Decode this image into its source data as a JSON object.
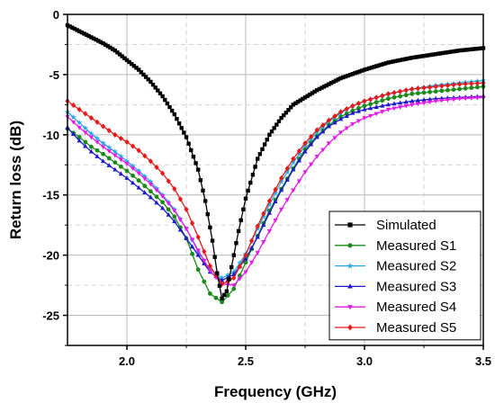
{
  "chart_data": {
    "type": "line",
    "title": "",
    "xlabel": "Frequency (GHz)",
    "ylabel": "Return loss (dB)",
    "xlim": [
      1.75,
      3.5
    ],
    "ylim": [
      -27.5,
      0
    ],
    "xticks": [
      2.0,
      2.5,
      3.0,
      3.5
    ],
    "xtick_labels": [
      "2.0",
      "2.5",
      "3.0",
      "3.5"
    ],
    "yticks": [
      0,
      -5,
      -10,
      -15,
      -20,
      -25
    ],
    "ytick_labels": [
      "0",
      "-5",
      "-10",
      "-15",
      "-20",
      "-25"
    ],
    "grid": true,
    "legend_position": "bottom-right",
    "series": [
      {
        "name": "Simulated",
        "color": "#000000",
        "marker": "square",
        "points": [
          [
            1.75,
            -0.9
          ],
          [
            1.8,
            -1.4
          ],
          [
            1.85,
            -1.9
          ],
          [
            1.9,
            -2.4
          ],
          [
            1.95,
            -3.0
          ],
          [
            2.0,
            -3.8
          ],
          [
            2.05,
            -4.6
          ],
          [
            2.1,
            -5.6
          ],
          [
            2.15,
            -6.8
          ],
          [
            2.2,
            -8.3
          ],
          [
            2.25,
            -10.2
          ],
          [
            2.3,
            -12.9
          ],
          [
            2.33,
            -15.5
          ],
          [
            2.36,
            -18.8
          ],
          [
            2.38,
            -21.5
          ],
          [
            2.4,
            -23.6
          ],
          [
            2.42,
            -23.0
          ],
          [
            2.44,
            -21.0
          ],
          [
            2.47,
            -18.0
          ],
          [
            2.5,
            -15.3
          ],
          [
            2.55,
            -12.0
          ],
          [
            2.6,
            -10.0
          ],
          [
            2.65,
            -8.6
          ],
          [
            2.7,
            -7.5
          ],
          [
            2.8,
            -6.3
          ],
          [
            2.9,
            -5.3
          ],
          [
            3.0,
            -4.6
          ],
          [
            3.1,
            -4.0
          ],
          [
            3.2,
            -3.6
          ],
          [
            3.3,
            -3.3
          ],
          [
            3.4,
            -3.0
          ],
          [
            3.5,
            -2.8
          ]
        ]
      },
      {
        "name": "Measured S1",
        "color": "#1a8a1a",
        "marker": "circle",
        "points": [
          [
            1.75,
            -9.5
          ],
          [
            1.8,
            -10.2
          ],
          [
            1.85,
            -11.0
          ],
          [
            1.9,
            -11.6
          ],
          [
            1.95,
            -12.3
          ],
          [
            2.0,
            -13.0
          ],
          [
            2.05,
            -13.8
          ],
          [
            2.1,
            -14.7
          ],
          [
            2.15,
            -15.6
          ],
          [
            2.2,
            -16.8
          ],
          [
            2.25,
            -18.6
          ],
          [
            2.3,
            -21.2
          ],
          [
            2.35,
            -23.2
          ],
          [
            2.4,
            -23.9
          ],
          [
            2.45,
            -22.8
          ],
          [
            2.5,
            -20.6
          ],
          [
            2.55,
            -18.4
          ],
          [
            2.6,
            -16.3
          ],
          [
            2.65,
            -14.5
          ],
          [
            2.7,
            -12.8
          ],
          [
            2.75,
            -11.2
          ],
          [
            2.8,
            -10.1
          ],
          [
            2.85,
            -9.2
          ],
          [
            2.9,
            -8.5
          ],
          [
            2.95,
            -8.0
          ],
          [
            3.0,
            -7.6
          ],
          [
            3.1,
            -7.0
          ],
          [
            3.2,
            -6.6
          ],
          [
            3.3,
            -6.4
          ],
          [
            3.4,
            -6.2
          ],
          [
            3.5,
            -6.0
          ]
        ]
      },
      {
        "name": "Measured S2",
        "color": "#2aa7e6",
        "marker": "star",
        "points": [
          [
            1.75,
            -8.1
          ],
          [
            1.8,
            -9.0
          ],
          [
            1.85,
            -9.9
          ],
          [
            1.9,
            -10.7
          ],
          [
            1.95,
            -11.4
          ],
          [
            2.0,
            -12.2
          ],
          [
            2.05,
            -13.0
          ],
          [
            2.1,
            -13.9
          ],
          [
            2.15,
            -15.0
          ],
          [
            2.2,
            -16.2
          ],
          [
            2.25,
            -17.8
          ],
          [
            2.3,
            -19.7
          ],
          [
            2.35,
            -21.2
          ],
          [
            2.4,
            -21.9
          ],
          [
            2.45,
            -21.4
          ],
          [
            2.5,
            -19.9
          ],
          [
            2.55,
            -17.8
          ],
          [
            2.6,
            -15.8
          ],
          [
            2.65,
            -13.9
          ],
          [
            2.7,
            -12.3
          ],
          [
            2.75,
            -10.9
          ],
          [
            2.8,
            -9.8
          ],
          [
            2.85,
            -8.9
          ],
          [
            2.9,
            -8.2
          ],
          [
            2.95,
            -7.6
          ],
          [
            3.0,
            -7.2
          ],
          [
            3.1,
            -6.6
          ],
          [
            3.2,
            -6.2
          ],
          [
            3.3,
            -5.9
          ],
          [
            3.4,
            -5.7
          ],
          [
            3.5,
            -5.5
          ]
        ]
      },
      {
        "name": "Measured S3",
        "color": "#1a1ac8",
        "marker": "triangle",
        "points": [
          [
            1.75,
            -9.4
          ],
          [
            1.8,
            -10.5
          ],
          [
            1.85,
            -11.4
          ],
          [
            1.9,
            -12.2
          ],
          [
            1.95,
            -12.9
          ],
          [
            2.0,
            -13.6
          ],
          [
            2.05,
            -14.4
          ],
          [
            2.1,
            -15.2
          ],
          [
            2.15,
            -16.1
          ],
          [
            2.2,
            -17.2
          ],
          [
            2.25,
            -18.6
          ],
          [
            2.3,
            -20.0
          ],
          [
            2.35,
            -21.4
          ],
          [
            2.4,
            -22.1
          ],
          [
            2.45,
            -21.6
          ],
          [
            2.5,
            -20.3
          ],
          [
            2.55,
            -18.5
          ],
          [
            2.6,
            -16.5
          ],
          [
            2.65,
            -14.6
          ],
          [
            2.7,
            -12.9
          ],
          [
            2.75,
            -11.4
          ],
          [
            2.8,
            -10.2
          ],
          [
            2.85,
            -9.3
          ],
          [
            2.9,
            -8.7
          ],
          [
            2.95,
            -8.2
          ],
          [
            3.0,
            -7.9
          ],
          [
            3.1,
            -7.5
          ],
          [
            3.2,
            -7.2
          ],
          [
            3.3,
            -7.0
          ],
          [
            3.4,
            -6.9
          ],
          [
            3.5,
            -6.8
          ]
        ]
      },
      {
        "name": "Measured S4",
        "color": "#e61ae6",
        "marker": "triangle-down",
        "points": [
          [
            1.75,
            -8.5
          ],
          [
            1.8,
            -9.4
          ],
          [
            1.85,
            -10.2
          ],
          [
            1.9,
            -11.0
          ],
          [
            1.95,
            -11.7
          ],
          [
            2.0,
            -12.4
          ],
          [
            2.05,
            -13.2
          ],
          [
            2.1,
            -14.1
          ],
          [
            2.15,
            -15.1
          ],
          [
            2.2,
            -16.3
          ],
          [
            2.25,
            -17.8
          ],
          [
            2.3,
            -19.6
          ],
          [
            2.35,
            -21.3
          ],
          [
            2.4,
            -22.4
          ],
          [
            2.45,
            -22.5
          ],
          [
            2.5,
            -21.4
          ],
          [
            2.55,
            -19.8
          ],
          [
            2.6,
            -18.0
          ],
          [
            2.65,
            -16.2
          ],
          [
            2.7,
            -14.6
          ],
          [
            2.75,
            -13.1
          ],
          [
            2.8,
            -11.8
          ],
          [
            2.85,
            -10.7
          ],
          [
            2.9,
            -9.8
          ],
          [
            2.95,
            -9.1
          ],
          [
            3.0,
            -8.6
          ],
          [
            3.1,
            -7.9
          ],
          [
            3.2,
            -7.5
          ],
          [
            3.3,
            -7.2
          ],
          [
            3.4,
            -7.0
          ],
          [
            3.5,
            -6.9
          ]
        ]
      },
      {
        "name": "Measured S5",
        "color": "#e61a1a",
        "marker": "diamond",
        "points": [
          [
            1.75,
            -7.2
          ],
          [
            1.8,
            -7.9
          ],
          [
            1.85,
            -8.6
          ],
          [
            1.9,
            -9.3
          ],
          [
            1.95,
            -10.0
          ],
          [
            2.0,
            -10.6
          ],
          [
            2.05,
            -11.3
          ],
          [
            2.1,
            -12.2
          ],
          [
            2.15,
            -13.2
          ],
          [
            2.2,
            -14.5
          ],
          [
            2.25,
            -16.2
          ],
          [
            2.3,
            -18.5
          ],
          [
            2.35,
            -20.9
          ],
          [
            2.4,
            -22.4
          ],
          [
            2.45,
            -21.9
          ],
          [
            2.5,
            -20.0
          ],
          [
            2.55,
            -17.6
          ],
          [
            2.6,
            -15.5
          ],
          [
            2.65,
            -13.6
          ],
          [
            2.7,
            -12.0
          ],
          [
            2.75,
            -10.7
          ],
          [
            2.8,
            -9.6
          ],
          [
            2.85,
            -8.8
          ],
          [
            2.9,
            -8.1
          ],
          [
            2.95,
            -7.6
          ],
          [
            3.0,
            -7.2
          ],
          [
            3.1,
            -6.6
          ],
          [
            3.2,
            -6.2
          ],
          [
            3.3,
            -6.0
          ],
          [
            3.4,
            -5.8
          ],
          [
            3.5,
            -5.7
          ]
        ]
      }
    ]
  }
}
